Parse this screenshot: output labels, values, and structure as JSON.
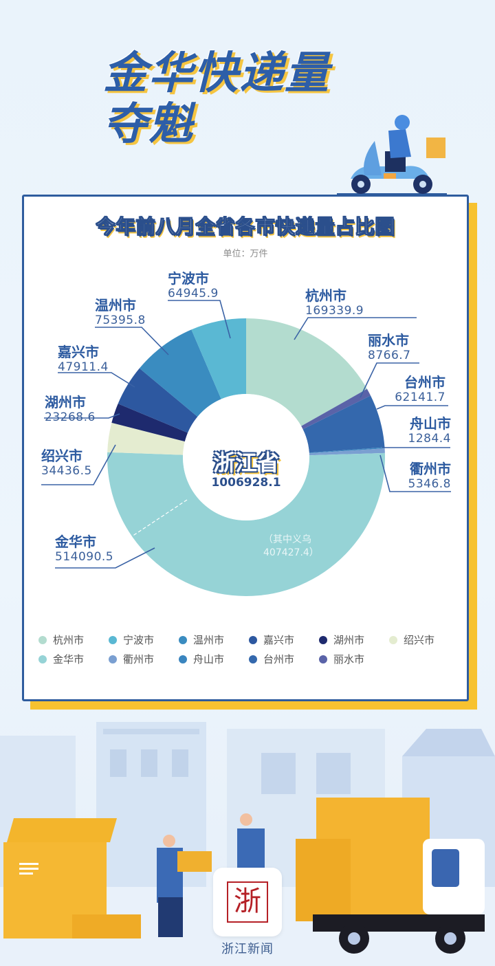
{
  "header": {
    "title_line1": "金华快递量",
    "title_line2": "夺魁"
  },
  "colors": {
    "primary_blue": "#2e5c9e",
    "accent_yellow": "#f7c230",
    "background": "#eaf3fb"
  },
  "chart": {
    "title": "今年前八月全省各市快递量占比图",
    "unit": "单位：万件",
    "center_name": "浙江省",
    "center_value": "1006928.1",
    "yiwu_note_line1": "（其中义乌",
    "yiwu_note_line2": "407427.4）"
  },
  "labels": [
    {
      "name": "杭州市",
      "value": "169339.9"
    },
    {
      "name": "丽水市",
      "value": "8766.7"
    },
    {
      "name": "台州市",
      "value": "62141.7"
    },
    {
      "name": "舟山市",
      "value": "1284.4"
    },
    {
      "name": "衢州市",
      "value": "5346.8"
    },
    {
      "name": "金华市",
      "value": "514090.5"
    },
    {
      "name": "绍兴市",
      "value": "34436.5"
    },
    {
      "name": "湖州市",
      "value": "23268.6"
    },
    {
      "name": "嘉兴市",
      "value": "47911.4"
    },
    {
      "name": "温州市",
      "value": "75395.8"
    },
    {
      "name": "宁波市",
      "value": "64945.9"
    }
  ],
  "legend": [
    {
      "label": "杭州市",
      "color": "#b3dccf"
    },
    {
      "label": "宁波市",
      "color": "#5ab8d3"
    },
    {
      "label": "温州市",
      "color": "#3a8cc0"
    },
    {
      "label": "嘉兴市",
      "color": "#2d58a0"
    },
    {
      "label": "湖州市",
      "color": "#1e2a6e"
    },
    {
      "label": "绍兴市",
      "color": "#e4ecd0"
    },
    {
      "label": "金华市",
      "color": "#96d3d6"
    },
    {
      "label": "衢州市",
      "color": "#7a9fd1"
    },
    {
      "label": "舟山市",
      "color": "#3a85bf"
    },
    {
      "label": "台州市",
      "color": "#3468ad"
    },
    {
      "label": "丽水市",
      "color": "#5a63a8"
    }
  ],
  "footer": {
    "logo_glyph": "浙",
    "brand": "浙江新闻"
  },
  "chart_data": {
    "type": "pie",
    "variant": "donut",
    "title": "今年前八月全省各市快递量占比图",
    "unit": "万件",
    "total_label": "浙江省",
    "total": 1006928.1,
    "start_angle": "12 o'clock",
    "direction": "clockwise",
    "categories": [
      "杭州市",
      "丽水市",
      "台州市",
      "舟山市",
      "衢州市",
      "金华市",
      "绍兴市",
      "湖州市",
      "嘉兴市",
      "温州市",
      "宁波市"
    ],
    "values": [
      169339.9,
      8766.7,
      62141.7,
      1284.4,
      5346.8,
      514090.5,
      34436.5,
      23268.6,
      47911.4,
      75395.8,
      64945.9
    ],
    "colors": [
      "#b3dccf",
      "#5a63a8",
      "#3468ad",
      "#3a85bf",
      "#7a9fd1",
      "#96d3d6",
      "#e4ecd0",
      "#1e2a6e",
      "#2d58a0",
      "#3a8cc0",
      "#5ab8d3"
    ],
    "annotations": [
      {
        "target": "金华市",
        "text": "（其中义乌 407427.4）",
        "sub_value": 407427.4
      }
    ],
    "legend_position": "bottom",
    "legend_order": [
      "杭州市",
      "宁波市",
      "温州市",
      "嘉兴市",
      "湖州市",
      "绍兴市",
      "金华市",
      "衢州市",
      "舟山市",
      "台州市",
      "丽水市"
    ]
  }
}
